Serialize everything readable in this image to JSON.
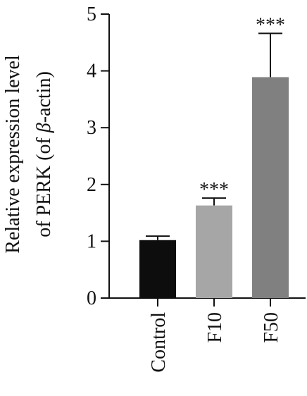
{
  "chart_data": {
    "type": "bar",
    "categories": [
      "Control",
      "F10",
      "F50"
    ],
    "values": [
      1.02,
      1.63,
      3.89
    ],
    "errors": [
      0.07,
      0.13,
      0.77
    ],
    "significance": [
      "",
      "***",
      "***"
    ],
    "ylabel_line1": "Relative expression level",
    "ylabel_line2_prefix": "of PERK (of ",
    "ylabel_line2_symbol": "β",
    "ylabel_line2_suffix": "-actin)",
    "ylim": [
      0,
      5
    ],
    "yticks": [
      0,
      1,
      2,
      3,
      4,
      5
    ],
    "ytick_labels": [
      "0",
      "1",
      "2",
      "3",
      "4",
      "5"
    ],
    "grid": false,
    "colors": [
      "#0d0d0d",
      "#a6a6a6",
      "#808080"
    ]
  }
}
